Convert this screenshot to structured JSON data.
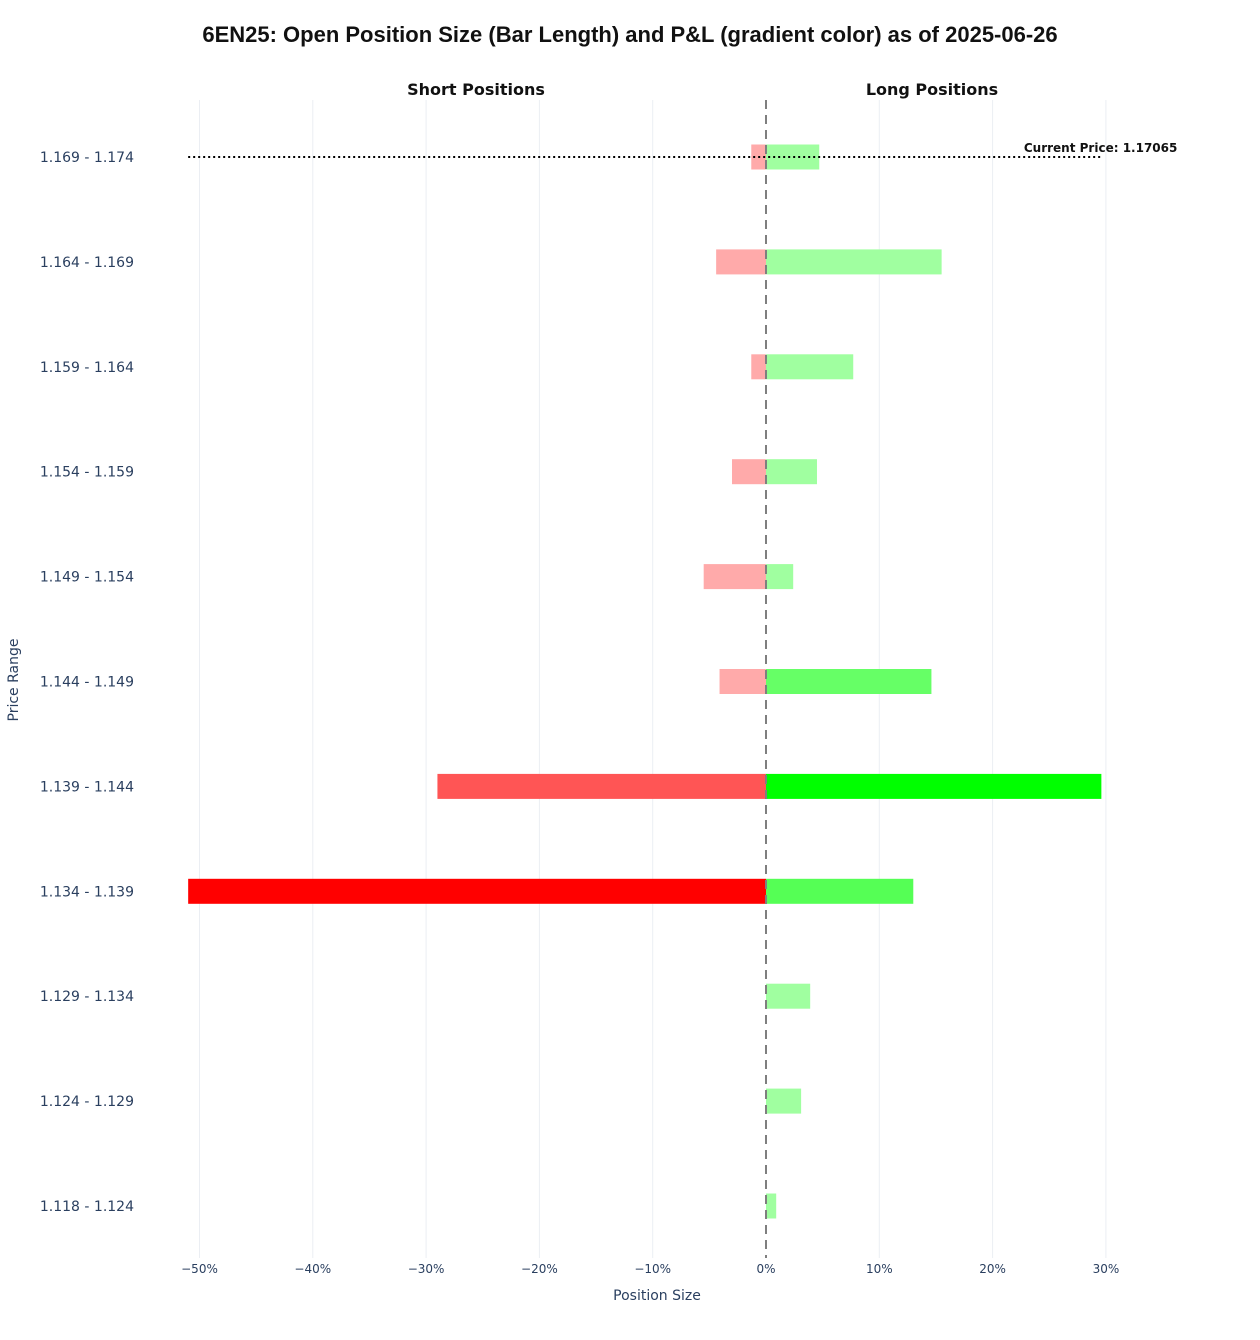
{
  "chart_data": {
    "type": "bar",
    "orientation": "horizontal",
    "title": "6EN25: Open Position Size (Bar Length) and P&L (gradient color) as of 2025-06-26",
    "subplot_titles": [
      "Short Positions",
      "Long Positions"
    ],
    "xlabel": "Position Size",
    "ylabel": "Price Range",
    "x_unit": "%",
    "xlim": [
      -52,
      31
    ],
    "x_ticks": [
      -50,
      -40,
      -30,
      -20,
      -10,
      0,
      10,
      20,
      30
    ],
    "x_tick_labels": [
      "−50%",
      "−40%",
      "−30%",
      "−20%",
      "−10%",
      "0%",
      "10%",
      "20%",
      "30%"
    ],
    "grid": true,
    "categories": [
      "1.169 - 1.174",
      "1.164 - 1.169",
      "1.159 - 1.164",
      "1.154 - 1.159",
      "1.149 - 1.154",
      "1.144 - 1.149",
      "1.139 - 1.144",
      "1.134 - 1.139",
      "1.129 - 1.134",
      "1.124 - 1.129",
      "1.118 - 1.124"
    ],
    "series": [
      {
        "side": "short",
        "values": [
          -1.3,
          -4.4,
          -1.3,
          -3.0,
          -5.5,
          -4.1,
          -29.0,
          -51.0,
          0,
          0,
          0
        ],
        "colors": [
          "#ffaaaa",
          "#ffaaaa",
          "#ffaaaa",
          "#ffaaaa",
          "#ffaaaa",
          "#ffaaaa",
          "#ff5555",
          "#ff0000",
          "#ffaaaa",
          "#ffaaaa",
          "#ffaaaa"
        ]
      },
      {
        "side": "long",
        "values": [
          4.7,
          15.5,
          7.7,
          4.5,
          2.4,
          14.6,
          29.6,
          13.0,
          3.9,
          3.1,
          0.9
        ],
        "colors": [
          "#a0ffa0",
          "#a0ffa0",
          "#a0ffa0",
          "#a0ffa0",
          "#a0ffa0",
          "#66ff66",
          "#00ff00",
          "#55ff55",
          "#a0ffa0",
          "#a0ffa0",
          "#a0ffa0"
        ]
      }
    ],
    "annotations": [
      {
        "text": "Current Price: 1.17065",
        "category": "1.169 - 1.174",
        "price": 1.17065
      }
    ],
    "zero_line_style": "dashed",
    "current_price_line_style": "dotted"
  }
}
